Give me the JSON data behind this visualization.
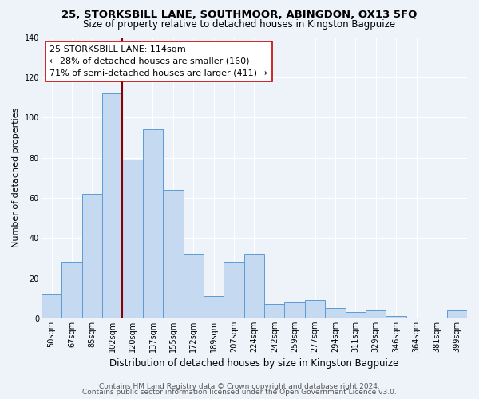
{
  "title": "25, STORKSBILL LANE, SOUTHMOOR, ABINGDON, OX13 5FQ",
  "subtitle": "Size of property relative to detached houses in Kingston Bagpuize",
  "xlabel": "Distribution of detached houses by size in Kingston Bagpuize",
  "ylabel": "Number of detached properties",
  "bar_labels": [
    "50sqm",
    "67sqm",
    "85sqm",
    "102sqm",
    "120sqm",
    "137sqm",
    "155sqm",
    "172sqm",
    "189sqm",
    "207sqm",
    "224sqm",
    "242sqm",
    "259sqm",
    "277sqm",
    "294sqm",
    "311sqm",
    "329sqm",
    "346sqm",
    "364sqm",
    "381sqm",
    "399sqm"
  ],
  "bar_heights": [
    12,
    28,
    62,
    112,
    79,
    94,
    64,
    32,
    11,
    28,
    32,
    7,
    8,
    9,
    5,
    3,
    4,
    1,
    0,
    0,
    4
  ],
  "bar_color": "#c5d9f0",
  "bar_edge_color": "#5b9bd5",
  "annotation_line_color": "#8b0000",
  "annotation_box_text": "25 STORKSBILL LANE: 114sqm\n← 28% of detached houses are smaller (160)\n71% of semi-detached houses are larger (411) →",
  "ylim": [
    0,
    140
  ],
  "yticks": [
    0,
    20,
    40,
    60,
    80,
    100,
    120,
    140
  ],
  "footer_line1": "Contains HM Land Registry data © Crown copyright and database right 2024.",
  "footer_line2": "Contains public sector information licensed under the Open Government Licence v3.0.",
  "bg_color": "#eef2f9",
  "grid_color": "#ffffff",
  "title_fontsize": 9.5,
  "subtitle_fontsize": 8.5,
  "annotation_fontsize": 8,
  "footer_fontsize": 6.5,
  "ylabel_fontsize": 8,
  "xlabel_fontsize": 8.5,
  "tick_fontsize": 7
}
